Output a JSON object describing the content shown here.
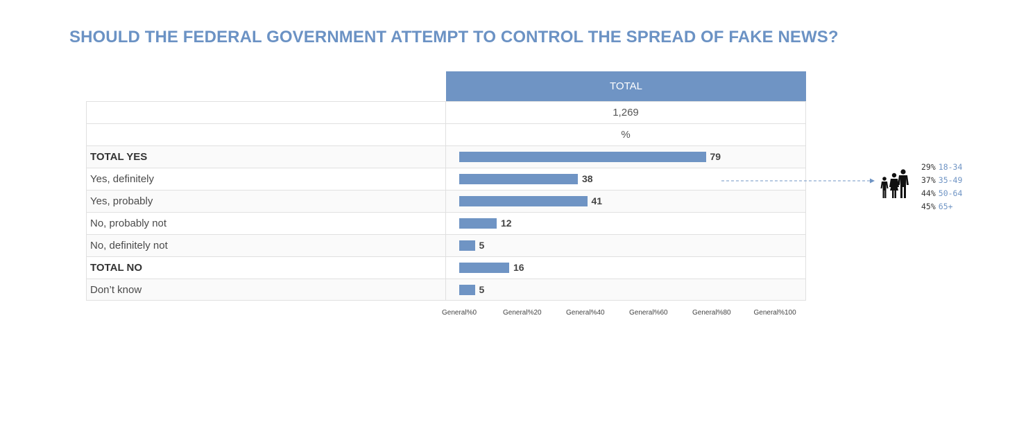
{
  "title": "SHOULD THE FEDERAL GOVERNMENT ATTEMPT TO CONTROL THE SPREAD OF FAKE NEWS?",
  "header": {
    "total_label": "TOTAL"
  },
  "meta_rows": {
    "base": "1,269",
    "unit": "%"
  },
  "colors": {
    "bar": "#6f94c4",
    "title": "#6b92c4",
    "header_bg": "#6f94c4"
  },
  "chart_data": {
    "type": "bar",
    "orientation": "horizontal",
    "title": "SHOULD THE FEDERAL GOVERNMENT ATTEMPT TO CONTROL THE SPREAD OF FAKE NEWS?",
    "categories": [
      "TOTAL YES",
      "Yes, definitely",
      "Yes, probably",
      "No, probably not",
      "No, definitely not",
      "TOTAL NO",
      "Don’t know"
    ],
    "values": [
      79,
      38,
      41,
      12,
      5,
      16,
      5
    ],
    "bold": [
      true,
      false,
      false,
      false,
      false,
      true,
      false
    ],
    "xlim": [
      0,
      100
    ],
    "ticks": [
      "General%0",
      "General%20",
      "General%40",
      "General%60",
      "General%80",
      "General%100"
    ],
    "grid": false,
    "legend": "none"
  },
  "breakdown": {
    "icon": "family-icon",
    "items": [
      {
        "pct": "29%",
        "age": "18-34"
      },
      {
        "pct": "37%",
        "age": "35-49"
      },
      {
        "pct": "44%",
        "age": "50-64"
      },
      {
        "pct": "45%",
        "age": "65+"
      }
    ]
  }
}
